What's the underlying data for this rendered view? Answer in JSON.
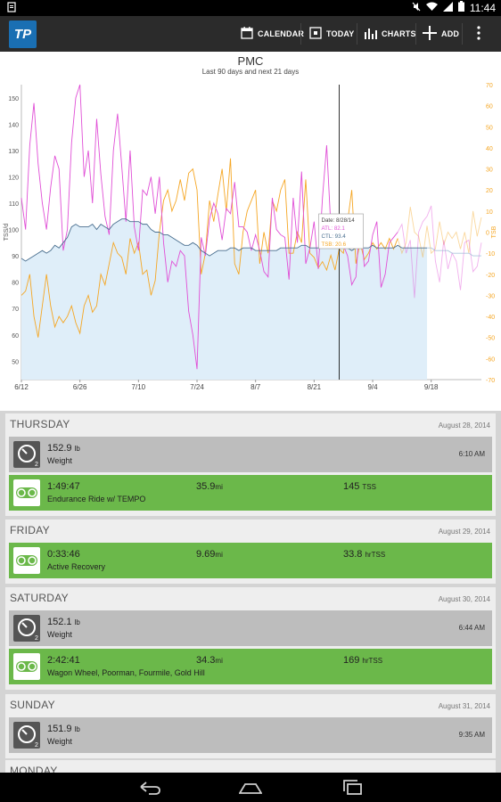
{
  "status_bar": {
    "time": "11:44"
  },
  "action_bar": {
    "calendar": "CALENDAR",
    "today": "TODAY",
    "charts": "CHARTS",
    "add": "ADD",
    "logo_text": "TP"
  },
  "chart": {
    "title": "PMC",
    "subtitle": "Last 90 days and next 21 days",
    "tooltip": {
      "date": "Date: 8/28/14",
      "atl": "ATL: 82.1",
      "ctl": "CTL: 93.4",
      "tsb": "TSB: 20.6"
    },
    "colors": {
      "ctl_fill": "#dfeef9",
      "ctl_line": "#4a6f8f",
      "atl": "#e04fd6",
      "tsb": "#f5a623"
    },
    "pager": {
      "count": 8,
      "active": 4
    }
  },
  "chart_data": {
    "type": "line",
    "x_ticks": [
      "6/12",
      "6/26",
      "7/10",
      "7/24",
      "8/7",
      "8/21",
      "9/4",
      "9/18"
    ],
    "yleft_label": "TSS/d",
    "yleft_ticks": [
      "150",
      "140",
      "130",
      "120",
      "110",
      "100",
      "90",
      "80",
      "70",
      "60",
      "50"
    ],
    "yleft_lim": [
      43,
      155
    ],
    "yright_label": "TSB",
    "yright_ticks": [
      "70",
      "60",
      "50",
      "40",
      "30",
      "20",
      "10",
      "0",
      "-10",
      "-20",
      "-30",
      "-40",
      "-50",
      "-60",
      "-70"
    ],
    "yright_lim": [
      -70,
      70
    ],
    "marker_date": "8/28/14",
    "series": [
      {
        "name": "CTL",
        "values": [
          89,
          88,
          89,
          90,
          91,
          92,
          91,
          92,
          94,
          93,
          95,
          97,
          101,
          102,
          101,
          101,
          101,
          102,
          100,
          102,
          101,
          100,
          102,
          103,
          104,
          104,
          103,
          103,
          103,
          102,
          102,
          100,
          99,
          99,
          98,
          98,
          97,
          96,
          95,
          94,
          94,
          95,
          94,
          92,
          91,
          90,
          91,
          92,
          92,
          92,
          93,
          93,
          92,
          93,
          93,
          93,
          92,
          92,
          92,
          92,
          92,
          92,
          93,
          93,
          93,
          93,
          93,
          94,
          94,
          93,
          93,
          93,
          93,
          93,
          93,
          93,
          94,
          94,
          93,
          92,
          93,
          93,
          93,
          93,
          94,
          93,
          93,
          93,
          93,
          93,
          94,
          93,
          93,
          93,
          93,
          93,
          93,
          93,
          93,
          92,
          92,
          92,
          92,
          91,
          91,
          91,
          91,
          91,
          90,
          90,
          90
        ]
      },
      {
        "name": "ATL",
        "values": [
          112,
          100,
          132,
          148,
          125,
          110,
          100,
          116,
          128,
          123,
          92,
          100,
          133,
          150,
          155,
          120,
          130,
          110,
          142,
          121,
          105,
          98,
          130,
          144,
          124,
          103,
          130,
          101,
          92,
          115,
          113,
          120,
          106,
          120,
          95,
          80,
          88,
          86,
          92,
          90,
          69,
          60,
          47,
          97,
          90,
          104,
          110,
          106,
          96,
          108,
          106,
          118,
          101,
          101,
          99,
          92,
          98,
          92,
          84,
          82,
          112,
          100,
          98,
          97,
          81,
          112,
          95,
          122,
          87,
          93,
          103,
          85,
          112,
          132,
          101,
          93,
          99,
          94,
          90,
          79,
          82,
          105,
          86,
          88,
          98,
          103,
          78,
          83,
          95,
          97,
          99,
          102,
          91,
          96,
          74,
          99,
          103,
          105,
          109,
          88,
          80,
          96,
          85,
          91,
          88,
          77,
          95,
          96,
          84,
          86,
          95
        ]
      },
      {
        "name": "TSB",
        "values": [
          -30,
          -28,
          -20,
          -40,
          -50,
          -35,
          -20,
          -35,
          -45,
          -40,
          -43,
          -40,
          -35,
          -43,
          -48,
          -35,
          -30,
          -38,
          -35,
          -20,
          -25,
          -15,
          -5,
          -10,
          -12,
          -20,
          -3,
          -10,
          -5,
          -20,
          -18,
          -30,
          -23,
          0,
          15,
          20,
          10,
          15,
          25,
          15,
          28,
          30,
          20,
          -20,
          -10,
          15,
          5,
          18,
          30,
          10,
          35,
          -15,
          -20,
          0,
          10,
          15,
          20,
          -15,
          0,
          -10,
          15,
          10,
          20,
          25,
          -10,
          -10,
          0,
          -5,
          25,
          -10,
          -12,
          -17,
          -14,
          -18,
          -11,
          -18,
          -8,
          -10,
          5,
          20,
          -15,
          -5,
          -13,
          -10,
          -5,
          -8,
          -5,
          -8,
          -3,
          -8,
          -3,
          -10,
          -5,
          12,
          0,
          -2,
          -12,
          3,
          -10,
          -8,
          5,
          -6,
          0,
          -3,
          0,
          -8,
          0,
          -10,
          10,
          -2,
          7
        ]
      }
    ]
  },
  "days": [
    {
      "name": "THURSDAY",
      "date": "August 28, 2014",
      "items": [
        {
          "kind": "metric",
          "value": "152.9",
          "unit": "lb",
          "label": "Weight",
          "time": "6:10 AM"
        },
        {
          "kind": "workout",
          "duration": "1:49:47",
          "distance": "35.9",
          "distance_unit": "mi",
          "tss": "145",
          "tss_unit": "TSS",
          "label": "Endurance Ride w/ TEMPO"
        }
      ]
    },
    {
      "name": "FRIDAY",
      "date": "August 29, 2014",
      "items": [
        {
          "kind": "workout",
          "duration": "0:33:46",
          "distance": "9.69",
          "distance_unit": "mi",
          "tss": "33.8",
          "tss_unit": "hrTSS",
          "label": "Active Recovery"
        }
      ]
    },
    {
      "name": "SATURDAY",
      "date": "August 30, 2014",
      "items": [
        {
          "kind": "metric",
          "value": "152.1",
          "unit": "lb",
          "label": "Weight",
          "time": "6:44 AM"
        },
        {
          "kind": "workout",
          "duration": "2:42:41",
          "distance": "34.3",
          "distance_unit": "mi",
          "tss": "169",
          "tss_unit": "hrTSS",
          "label": "Wagon Wheel, Poorman, Fourmile, Gold Hill"
        }
      ]
    },
    {
      "name": "SUNDAY",
      "date": "August 31, 2014",
      "items": [
        {
          "kind": "metric",
          "value": "151.9",
          "unit": "lb",
          "label": "Weight",
          "time": "9:35 AM"
        }
      ]
    },
    {
      "name": "MONDAY",
      "date": "",
      "items": []
    }
  ]
}
